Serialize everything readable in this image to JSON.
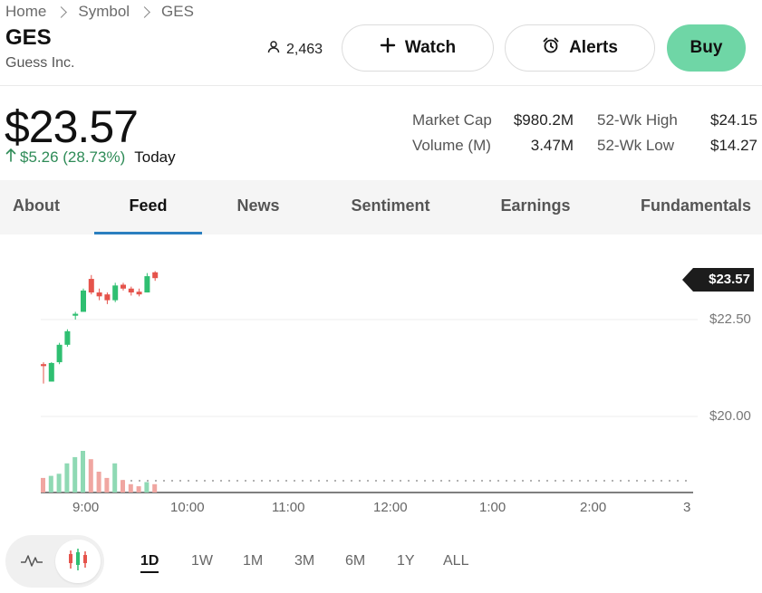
{
  "breadcrumb": [
    "Home",
    "Symbol",
    "GES"
  ],
  "header": {
    "ticker": "GES",
    "company": "Guess Inc.",
    "followers": "2,463",
    "watch_label": "Watch",
    "alerts_label": "Alerts",
    "buy_label": "Buy"
  },
  "quote": {
    "price": "$23.57",
    "change": "$5.26 (28.73%)",
    "period": "Today",
    "stats": [
      {
        "label": "Market Cap",
        "value": "$980.2M"
      },
      {
        "label": "52-Wk High",
        "value": "$24.15"
      },
      {
        "label": "Volume (M)",
        "value": "3.47M"
      },
      {
        "label": "52-Wk Low",
        "value": "$14.27"
      }
    ]
  },
  "tabs": [
    "About",
    "Feed",
    "News",
    "Sentiment",
    "Earnings",
    "Fundamentals"
  ],
  "active_tab": "Feed",
  "colors": {
    "up": "#2fbf71",
    "down": "#e5534b",
    "accent": "#2a7fbf",
    "buy": "#6fd6a6"
  },
  "chart_data": {
    "type": "candlestick",
    "current_price_label": "$23.57",
    "y_ticks": [
      "$22.50",
      "$20.00"
    ],
    "y_tick_values": [
      22.5,
      20.0
    ],
    "x_ticks": [
      "9:00",
      "10:00",
      "11:00",
      "12:00",
      "1:00",
      "2:00",
      "3"
    ],
    "candles": [
      {
        "o": 21.35,
        "h": 21.4,
        "l": 20.85,
        "c": 21.3
      },
      {
        "o": 20.9,
        "h": 21.4,
        "l": 20.9,
        "c": 21.38
      },
      {
        "o": 21.4,
        "h": 21.9,
        "l": 21.35,
        "c": 21.85
      },
      {
        "o": 21.85,
        "h": 22.25,
        "l": 21.8,
        "c": 22.2
      },
      {
        "o": 22.6,
        "h": 22.7,
        "l": 22.5,
        "c": 22.65
      },
      {
        "o": 22.7,
        "h": 23.3,
        "l": 22.7,
        "c": 23.25
      },
      {
        "o": 23.55,
        "h": 23.65,
        "l": 23.15,
        "c": 23.2
      },
      {
        "o": 23.2,
        "h": 23.3,
        "l": 23.0,
        "c": 23.1
      },
      {
        "o": 23.15,
        "h": 23.2,
        "l": 22.9,
        "c": 23.0
      },
      {
        "o": 23.0,
        "h": 23.45,
        "l": 22.95,
        "c": 23.38
      },
      {
        "o": 23.4,
        "h": 23.45,
        "l": 23.25,
        "c": 23.3
      },
      {
        "o": 23.3,
        "h": 23.35,
        "l": 23.12,
        "c": 23.2
      },
      {
        "o": 23.22,
        "h": 23.3,
        "l": 23.1,
        "c": 23.15
      },
      {
        "o": 23.2,
        "h": 23.7,
        "l": 23.2,
        "c": 23.62
      },
      {
        "o": 23.72,
        "h": 23.75,
        "l": 23.5,
        "c": 23.57
      }
    ],
    "volume": [
      0.35,
      0.4,
      0.45,
      0.7,
      0.85,
      1.0,
      0.8,
      0.5,
      0.35,
      0.7,
      0.3,
      0.2,
      0.15,
      0.25,
      0.2
    ]
  },
  "time_ranges": [
    "1D",
    "1W",
    "1M",
    "3M",
    "6M",
    "1Y",
    "ALL"
  ],
  "active_range": "1D"
}
